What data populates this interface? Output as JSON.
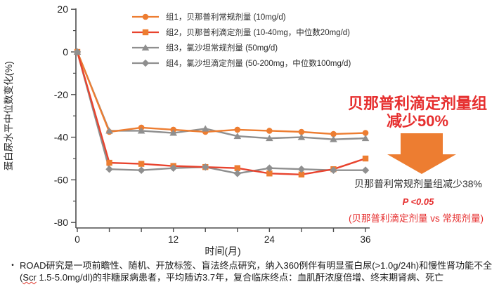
{
  "colors": {
    "orange": "#ed7d31",
    "red_line": "#e8432e",
    "gray": "#8f8f8f",
    "red_text": "#e62e2e",
    "axis": "#4d4d4d",
    "text": "#1a1a1a"
  },
  "chart_data": {
    "type": "line",
    "title": "",
    "xlabel": "时间(月)",
    "ylabel": "蛋白尿水平中位数变化(%)",
    "xlim": [
      0,
      36
    ],
    "ylim": [
      -80,
      20
    ],
    "grid": false,
    "legend_position": "top-center",
    "x": [
      0,
      4,
      8,
      12,
      16,
      20,
      24,
      28,
      32,
      36
    ],
    "xticks": [
      0,
      4,
      8,
      12,
      16,
      20,
      24,
      28,
      32,
      36
    ],
    "xticks_labeled": [
      0,
      12,
      24,
      36
    ],
    "yticks": [
      20,
      0,
      -20,
      -40,
      -60,
      -80
    ],
    "yticks_minor": [
      10,
      -10,
      -30,
      -50,
      -70
    ],
    "series": [
      {
        "name": "group1-benazepril-conventional",
        "label": "组1，贝那普利常规剂量 (10mg/d)",
        "marker": "circle",
        "line_color": "#ed7d31",
        "marker_color": "#ed7d31",
        "values": [
          0,
          -37.5,
          -35.5,
          -36.5,
          -37.5,
          -36.5,
          -37,
          -37.5,
          -38.5,
          -38
        ]
      },
      {
        "name": "group2-benazepril-titrated",
        "label": "组2，贝那普利滴定剂量 (10-40mg，中位数20mg/d)",
        "marker": "square",
        "line_color": "#e8432e",
        "marker_color": "#ed7d31",
        "values": [
          0,
          -52,
          -52.5,
          -53.5,
          -54,
          -54.5,
          -57,
          -57.5,
          -55,
          -50
        ]
      },
      {
        "name": "group3-losartan-conventional",
        "label": "组3，氯沙坦常规剂量 (50mg/d)",
        "marker": "triangle",
        "line_color": "#8f8f8f",
        "marker_color": "#8f8f8f",
        "values": [
          0,
          -37,
          -37,
          -38,
          -36,
          -39.5,
          -40.5,
          -40,
          -41,
          -40.5
        ]
      },
      {
        "name": "group4-losartan-titrated",
        "label": "组4，氯沙坦滴定剂量 (50-200mg，中位数100mg/d)",
        "marker": "diamond",
        "line_color": "#8f8f8f",
        "marker_color": "#8f8f8f",
        "values": [
          0,
          -55,
          -55.5,
          -54.5,
          -54,
          -57,
          -54.5,
          -55,
          -55.5,
          -55.5
        ]
      }
    ]
  },
  "annotations": {
    "headline_line1": "贝那普利滴定剂量组",
    "headline_line2": "减少50%",
    "secondary": "贝那普利常规剂量组减少38%",
    "p_value": "P <0.05",
    "comparison": "(贝那普利滴定剂量  vs 常规剂量)"
  },
  "footnote": {
    "bullet": "•",
    "before": "ROAD研究是一项前瞻性、随机、开放标签、盲法终点研究，纳入360例伴有明显蛋白尿(>1.0g/24h)和慢性肾功能不全(",
    "flagged": "Scr",
    "after": " 1.5-5.0mg/dl)的非糖尿病患者，平均随访3.7年，复合临床终点：血肌酐浓度倍增、终末期肾病、死亡"
  }
}
